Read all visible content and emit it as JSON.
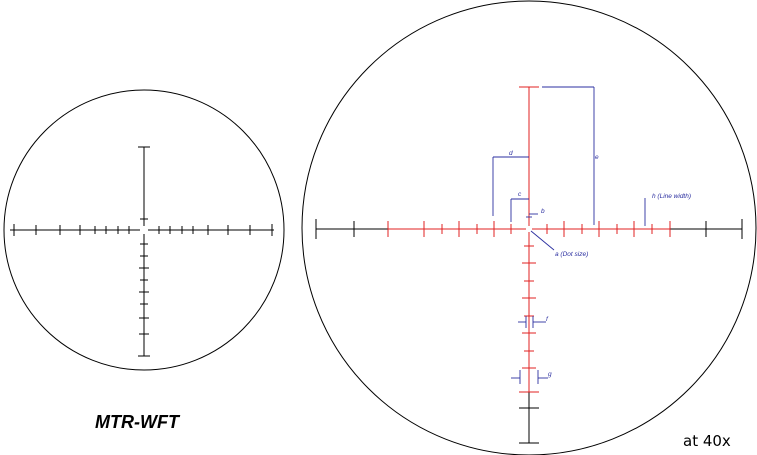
{
  "reticle_name": "MTR-WFT",
  "magnification": "at 40x",
  "labels": {
    "a": "a (Dot size)",
    "b": "b",
    "c": "c",
    "d": "d",
    "e": "e",
    "f": "f",
    "g": "g",
    "h": "h (Line width)"
  },
  "colors": {
    "reticle": "#000000",
    "center_reticle": "#e02020",
    "dimension": "#2b2fa0"
  }
}
